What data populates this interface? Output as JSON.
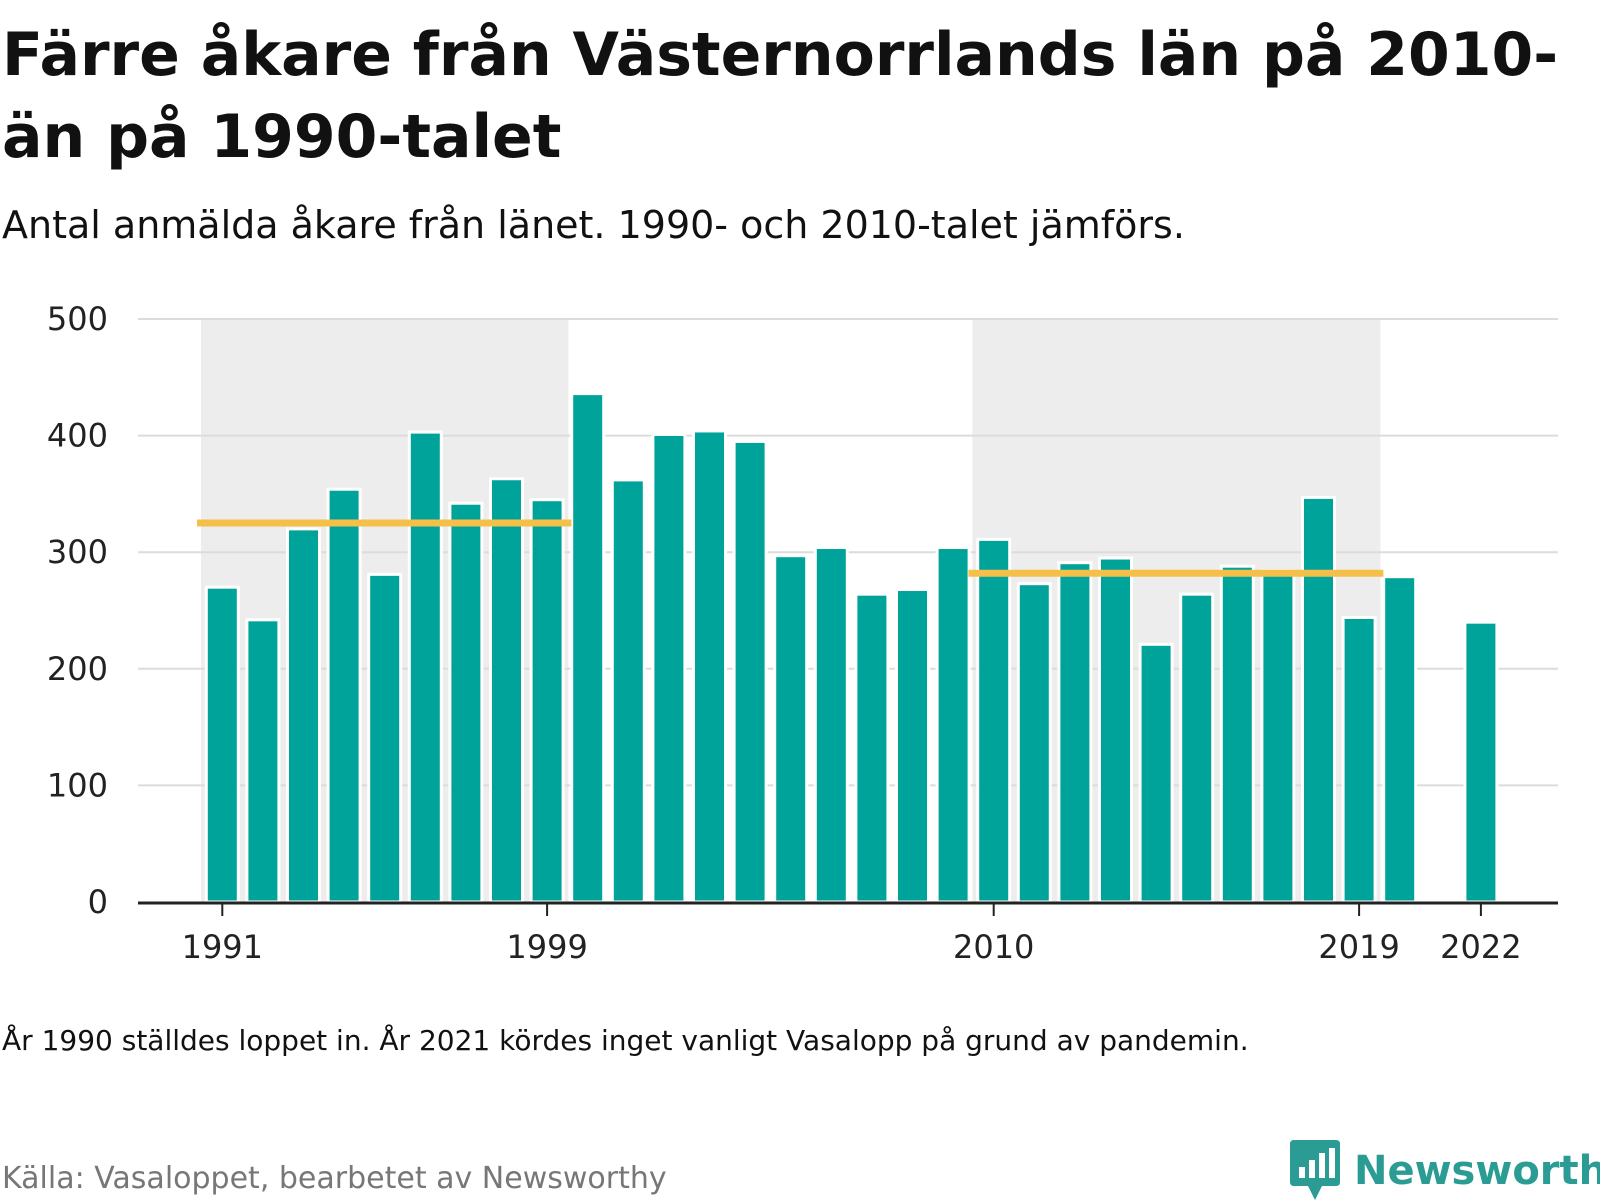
{
  "header": {
    "title": "Färre åkare från Västernorrlands län på 2010-än på 1990-talet",
    "subtitle": "Antal anmälda åkare från länet. 1990- och 2010-talet jämförs."
  },
  "footer": {
    "note": "År 1990 ställdes loppet in. År 2021 kördes inget vanligt Vasalopp på grund av pandemin.",
    "source": "Källa: Vasaloppet, bearbetet av Newsworthy",
    "brand": "Newsworthy"
  },
  "colors": {
    "bar": "#00a39a",
    "average_line": "#f5c04a",
    "decade_shade": "#ededed",
    "gridline": "#dcdcdc",
    "axis": "#222222",
    "brand": "#2a9c94"
  },
  "chart_data": {
    "type": "bar",
    "title": "Färre åkare från Västernorrlands län på 2010-än på 1990-talet",
    "subtitle": "Antal anmälda åkare från länet. 1990- och 2010-talet jämförs.",
    "x": [
      1991,
      1992,
      1993,
      1994,
      1995,
      1996,
      1997,
      1998,
      1999,
      2000,
      2001,
      2002,
      2003,
      2004,
      2005,
      2006,
      2007,
      2008,
      2009,
      2010,
      2011,
      2012,
      2013,
      2014,
      2015,
      2016,
      2017,
      2018,
      2019,
      2020,
      2022
    ],
    "values": [
      270,
      242,
      320,
      354,
      281,
      403,
      342,
      363,
      345,
      436,
      362,
      401,
      404,
      395,
      297,
      304,
      264,
      268,
      304,
      311,
      273,
      291,
      295,
      221,
      264,
      288,
      284,
      347,
      244,
      279,
      240
    ],
    "x_tick_labels": [
      "1991",
      "1999",
      "2010",
      "2019",
      "2022"
    ],
    "y_ticks": [
      0,
      100,
      200,
      300,
      400,
      500
    ],
    "ylim": [
      0,
      500
    ],
    "grid": true,
    "shaded_periods": [
      {
        "from": 1991,
        "to": 1999
      },
      {
        "from": 2010,
        "to": 2019
      }
    ],
    "averages": [
      {
        "from": 1991,
        "to": 1999,
        "value": 325
      },
      {
        "from": 2010,
        "to": 2019,
        "value": 282
      }
    ],
    "xlabel": "",
    "ylabel": ""
  }
}
